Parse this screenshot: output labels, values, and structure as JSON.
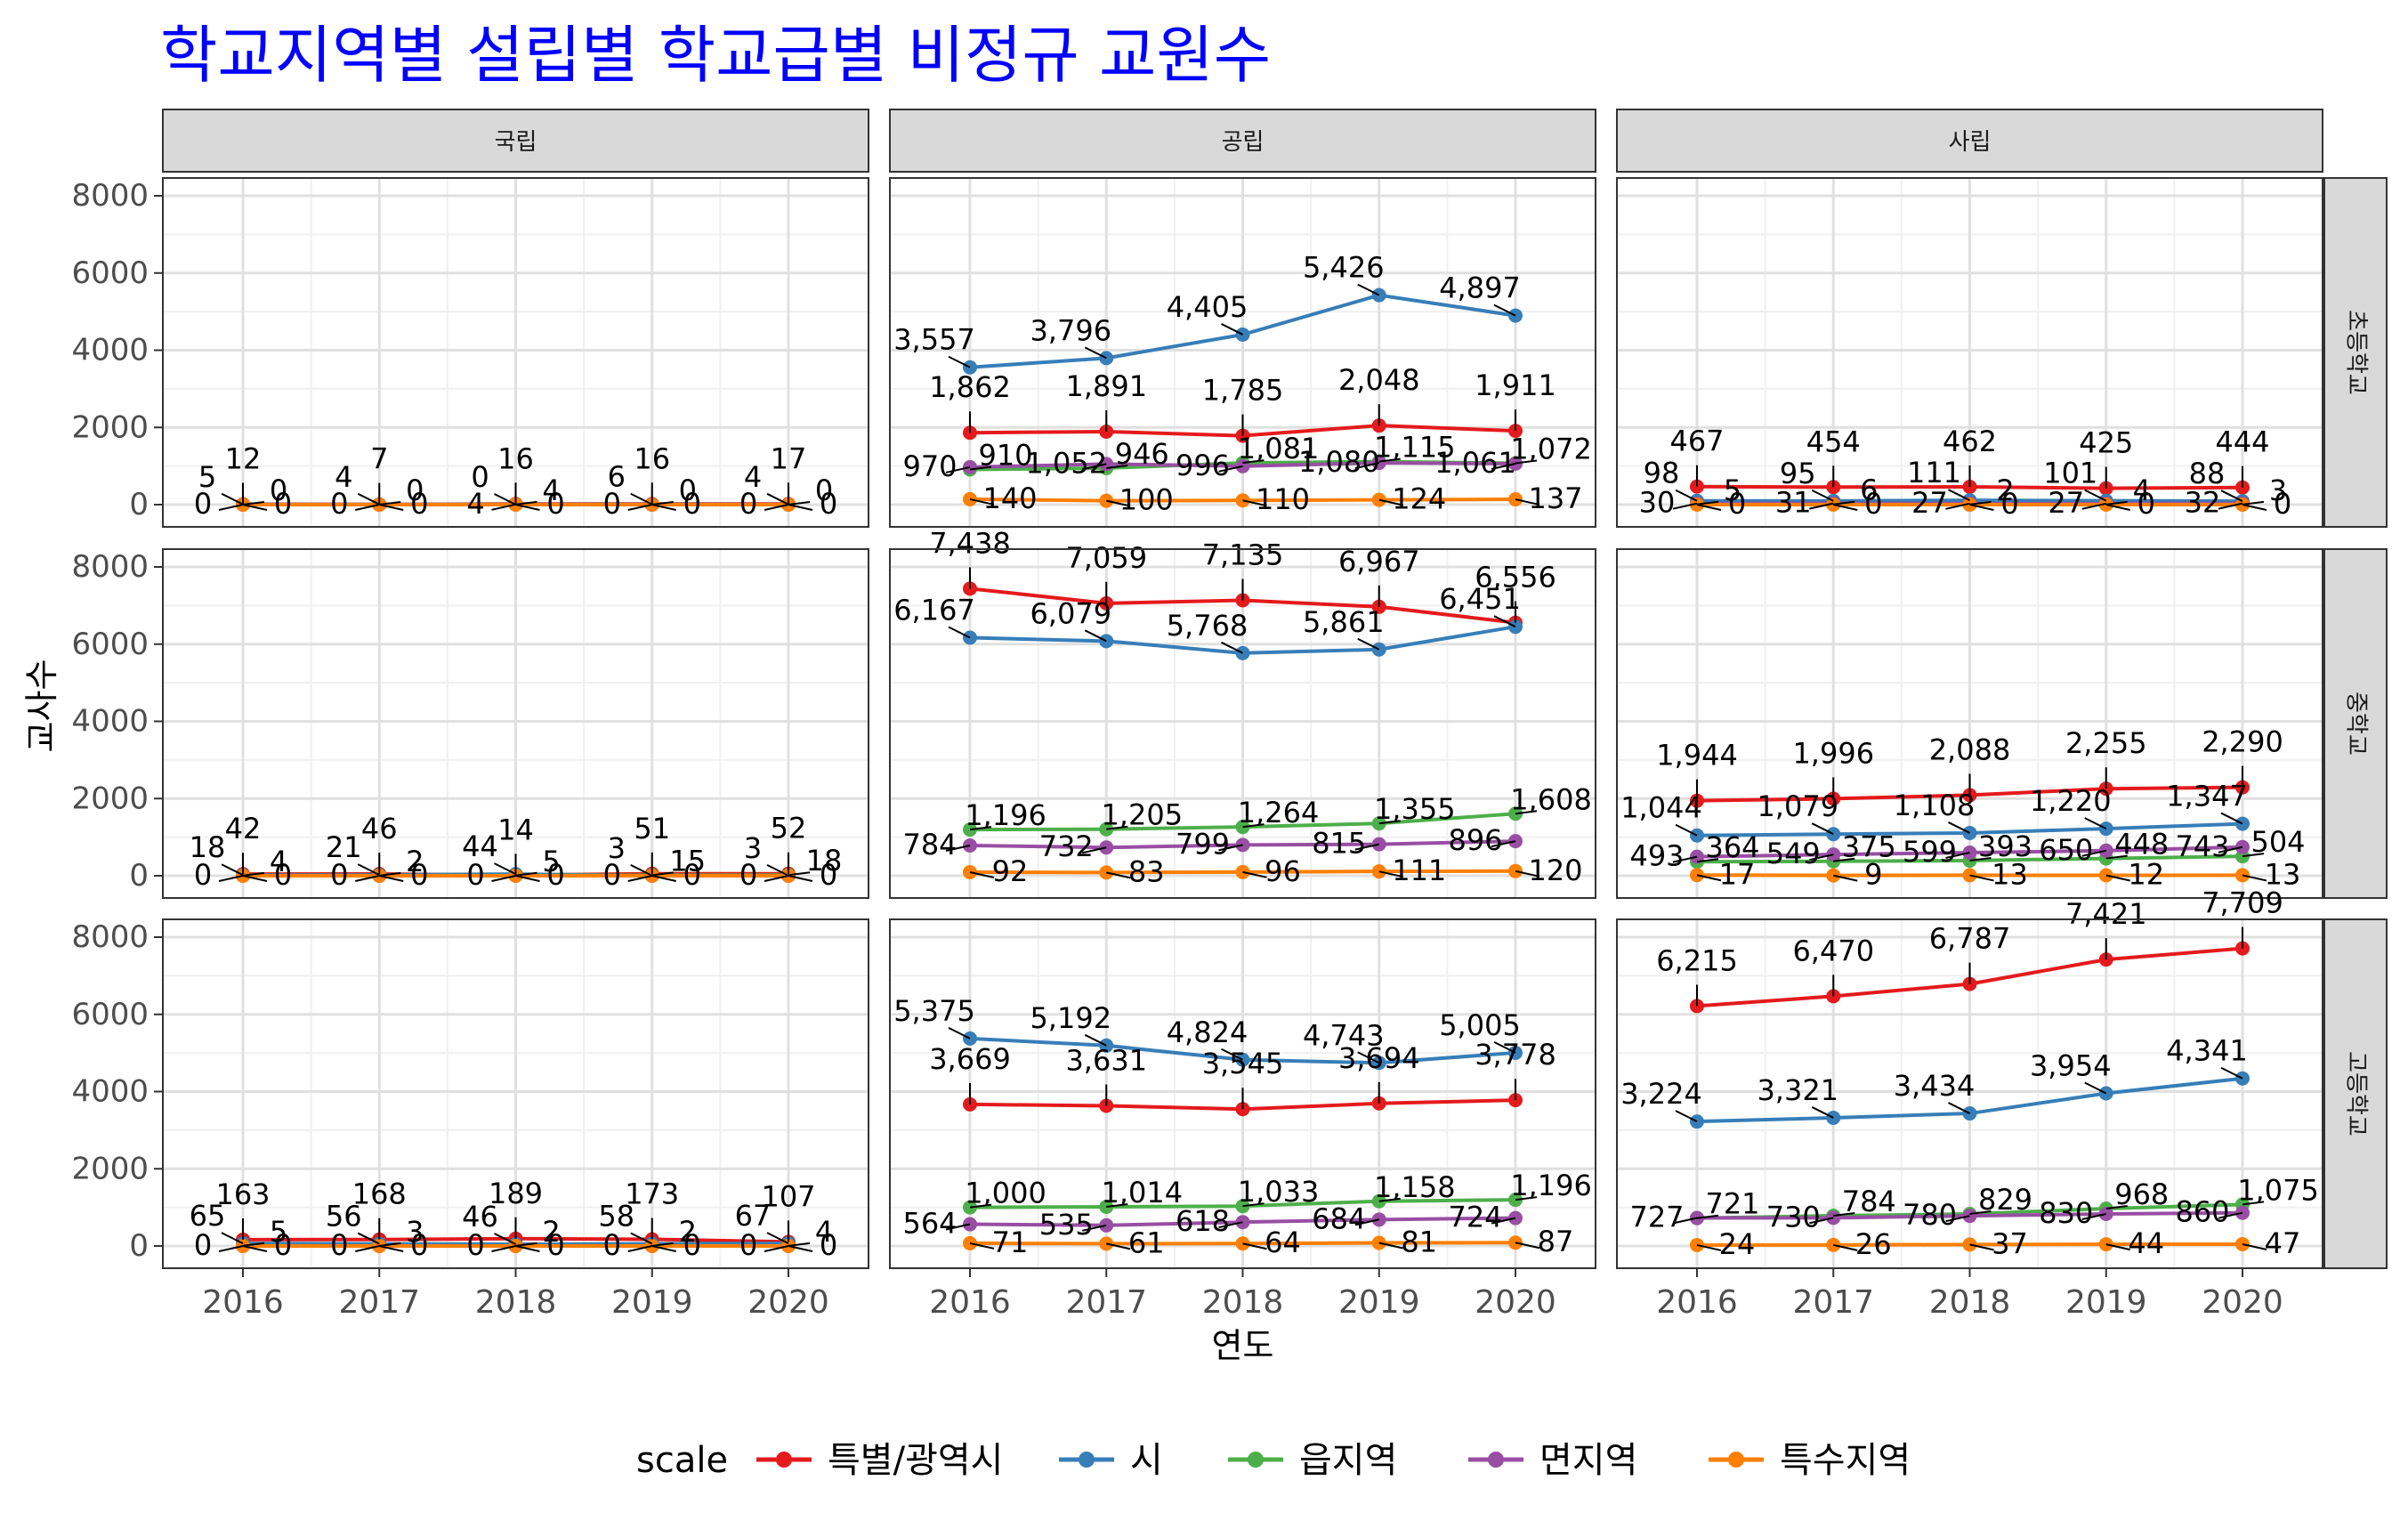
{
  "chart_data": {
    "type": "line",
    "title": "학교지역별 설립별 학교급별 비정규 교원수",
    "xlabel": "연도",
    "ylabel": "교사수",
    "legend_title": "scale",
    "legend_position": "bottom",
    "grid": true,
    "ylim": [
      0,
      8000
    ],
    "y_ticks": [
      "0",
      "2000",
      "4000",
      "6000",
      "8000"
    ],
    "x": [
      "2016",
      "2017",
      "2018",
      "2019",
      "2020"
    ],
    "columns": [
      "국립",
      "공립",
      "사립"
    ],
    "rows": [
      "초등학교",
      "중학교",
      "고등학교"
    ],
    "series": [
      {
        "name": "특별/광역시",
        "color": "#e41a1c"
      },
      {
        "name": "시",
        "color": "#377eb8"
      },
      {
        "name": "읍지역",
        "color": "#4daf4a"
      },
      {
        "name": "면지역",
        "color": "#984ea3"
      },
      {
        "name": "특수지역",
        "color": "#ff7f00"
      }
    ],
    "panels": [
      {
        "column": "국립",
        "row": "초등학교",
        "values": {
          "특별/광역시": [
            12,
            7,
            16,
            16,
            17
          ],
          "시": [
            5,
            4,
            0,
            6,
            4
          ],
          "읍지역": [
            0,
            0,
            4,
            0,
            0
          ],
          "면지역": [
            0,
            0,
            4,
            0,
            0
          ],
          "특수지역": [
            0,
            0,
            0,
            0,
            0
          ]
        }
      },
      {
        "column": "공립",
        "row": "초등학교",
        "values": {
          "특별/광역시": [
            1862,
            1891,
            1785,
            2048,
            1911
          ],
          "시": [
            3557,
            3796,
            4405,
            5426,
            4897
          ],
          "읍지역": [
            910,
            946,
            1081,
            1115,
            1072
          ],
          "면지역": [
            970,
            1052,
            996,
            1080,
            1061
          ],
          "특수지역": [
            140,
            100,
            110,
            124,
            137
          ]
        }
      },
      {
        "column": "사립",
        "row": "초등학교",
        "values": {
          "특별/광역시": [
            467,
            454,
            462,
            425,
            444
          ],
          "시": [
            98,
            95,
            111,
            101,
            88
          ],
          "읍지역": [
            5,
            6,
            2,
            4,
            3
          ],
          "면지역": [
            30,
            31,
            27,
            27,
            32
          ],
          "특수지역": [
            0,
            0,
            0,
            0,
            0
          ]
        }
      },
      {
        "column": "국립",
        "row": "중학교",
        "values": {
          "특별/광역시": [
            42,
            46,
            14,
            51,
            52
          ],
          "시": [
            18,
            21,
            44,
            3,
            3
          ],
          "읍지역": [
            4,
            2,
            5,
            15,
            18
          ],
          "면지역": [
            0,
            0,
            0,
            0,
            0
          ],
          "특수지역": [
            0,
            0,
            0,
            0,
            0
          ]
        }
      },
      {
        "column": "공립",
        "row": "중학교",
        "values": {
          "특별/광역시": [
            7438,
            7059,
            7135,
            6967,
            6556
          ],
          "시": [
            6167,
            6079,
            5768,
            5861,
            6451
          ],
          "읍지역": [
            1196,
            1205,
            1264,
            1355,
            1608
          ],
          "면지역": [
            784,
            732,
            799,
            815,
            896
          ],
          "특수지역": [
            92,
            83,
            96,
            111,
            120
          ]
        }
      },
      {
        "column": "사립",
        "row": "중학교",
        "values": {
          "특별/광역시": [
            1944,
            1996,
            2088,
            2255,
            2290
          ],
          "시": [
            1044,
            1079,
            1108,
            1220,
            1347
          ],
          "읍지역": [
            364,
            375,
            393,
            448,
            504
          ],
          "면지역": [
            493,
            549,
            599,
            650,
            743
          ],
          "특수지역": [
            17,
            9,
            13,
            12,
            13
          ]
        }
      },
      {
        "column": "국립",
        "row": "고등학교",
        "values": {
          "특별/광역시": [
            163,
            168,
            189,
            173,
            107
          ],
          "시": [
            65,
            56,
            46,
            58,
            67
          ],
          "읍지역": [
            5,
            3,
            2,
            2,
            4
          ],
          "면지역": [
            0,
            0,
            0,
            0,
            0
          ],
          "특수지역": [
            0,
            0,
            0,
            0,
            0
          ]
        }
      },
      {
        "column": "공립",
        "row": "고등학교",
        "values": {
          "특별/광역시": [
            3669,
            3631,
            3545,
            3694,
            3778
          ],
          "시": [
            5375,
            5192,
            4824,
            4743,
            5005
          ],
          "읍지역": [
            1000,
            1014,
            1033,
            1158,
            1196
          ],
          "면지역": [
            564,
            535,
            618,
            684,
            724
          ],
          "특수지역": [
            71,
            61,
            64,
            81,
            87
          ]
        }
      },
      {
        "column": "사립",
        "row": "고등학교",
        "values": {
          "특별/광역시": [
            6215,
            6470,
            6787,
            7421,
            7709
          ],
          "시": [
            3224,
            3321,
            3434,
            3954,
            4341
          ],
          "읍지역": [
            721,
            784,
            829,
            968,
            1075
          ],
          "면지역": [
            727,
            730,
            780,
            830,
            860
          ],
          "특수지역": [
            24,
            26,
            37,
            44,
            47
          ]
        }
      }
    ]
  }
}
